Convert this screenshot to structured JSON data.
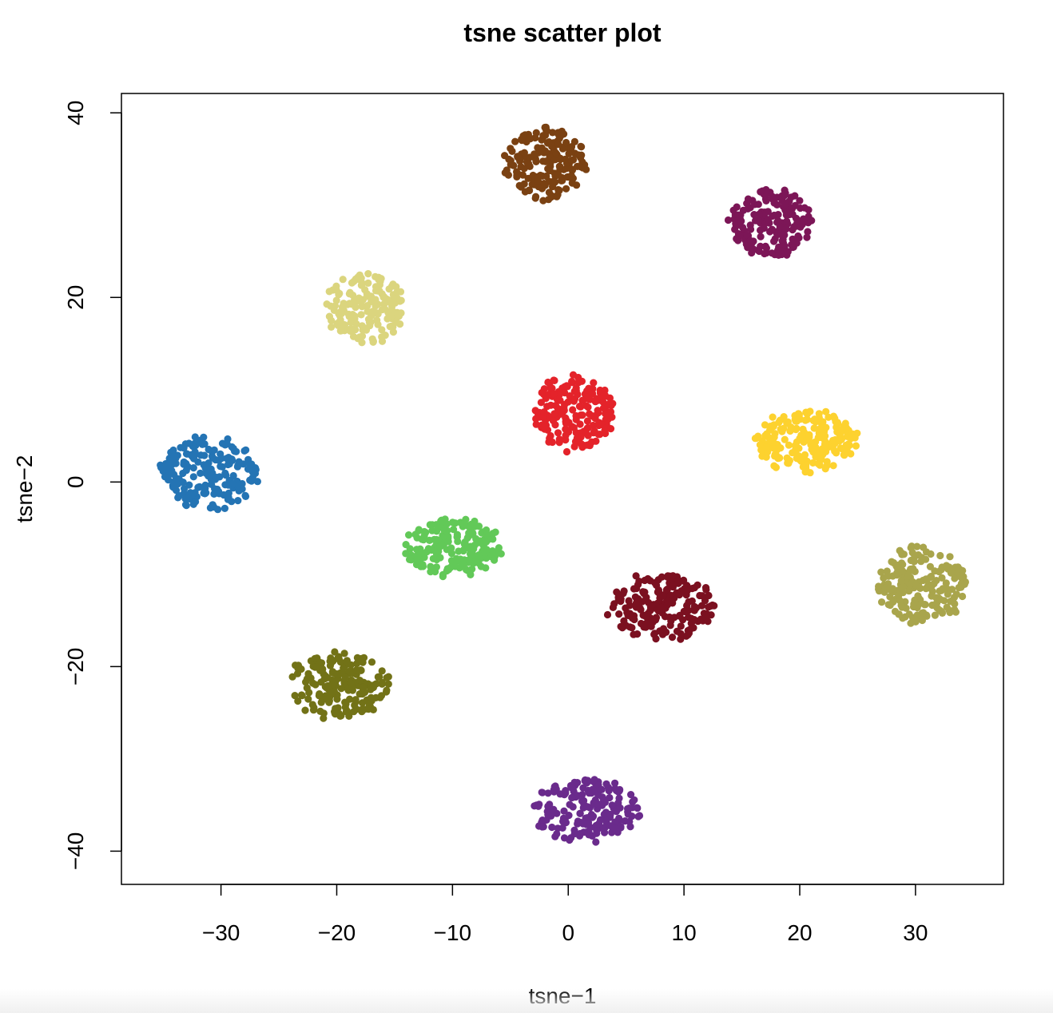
{
  "chart_data": {
    "type": "scatter",
    "title": "tsne scatter plot",
    "xlabel": "tsne−1",
    "ylabel": "tsne−2",
    "xlim": [
      -38.6,
      37.6
    ],
    "ylim": [
      -43.6,
      42.1
    ],
    "xticks": [
      -30,
      -20,
      -10,
      0,
      10,
      20,
      30
    ],
    "xtick_labels": [
      "−30",
      "−20",
      "−10",
      "0",
      "10",
      "20",
      "30"
    ],
    "yticks": [
      -40,
      -20,
      0,
      20,
      40
    ],
    "ytick_labels": [
      "−40",
      "−20",
      "0",
      "20",
      "40"
    ],
    "grid": false,
    "legend": "none",
    "clusters": [
      {
        "color": "#2474b4",
        "center": [
          -31,
          1
        ],
        "spread": [
          4.5,
          4.2
        ],
        "count": 190
      },
      {
        "color": "#dbd57e",
        "center": [
          -17.5,
          19
        ],
        "spread": [
          3.6,
          4.2
        ],
        "count": 170
      },
      {
        "color": "#7a4112",
        "center": [
          -2,
          34.5
        ],
        "spread": [
          3.8,
          4.3
        ],
        "count": 180
      },
      {
        "color": "#7c1657",
        "center": [
          17.5,
          28
        ],
        "spread": [
          3.8,
          4.0
        ],
        "count": 170
      },
      {
        "color": "#e4232a",
        "center": [
          0.5,
          7.5
        ],
        "spread": [
          3.6,
          4.5
        ],
        "count": 180
      },
      {
        "color": "#fdd22f",
        "center": [
          20.5,
          4.5
        ],
        "spread": [
          4.8,
          3.6
        ],
        "count": 200
      },
      {
        "color": "#62c958",
        "center": [
          -10,
          -7
        ],
        "spread": [
          4.5,
          3.4
        ],
        "count": 190
      },
      {
        "color": "#7b1020",
        "center": [
          8,
          -13.5
        ],
        "spread": [
          5.0,
          3.8
        ],
        "count": 190
      },
      {
        "color": "#a9a54c",
        "center": [
          30.5,
          -11
        ],
        "spread": [
          4.3,
          4.5
        ],
        "count": 190
      },
      {
        "color": "#727217",
        "center": [
          -20,
          -22
        ],
        "spread": [
          4.8,
          3.8
        ],
        "count": 190
      },
      {
        "color": "#6a2b8c",
        "center": [
          1.5,
          -35.5
        ],
        "spread": [
          5.0,
          3.7
        ],
        "count": 190
      }
    ]
  }
}
